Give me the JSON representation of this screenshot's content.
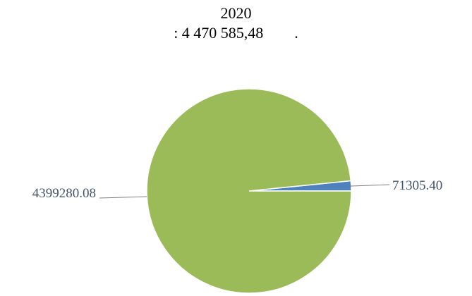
{
  "chart_data": {
    "type": "pie",
    "title_lines": [
      "2020",
      ": 4 470 585,48        ."
    ],
    "series": [
      {
        "values": [
          71305.4,
          4399280.08
        ],
        "data_labels": [
          "71305.40",
          "4399280.08"
        ],
        "colors": [
          "#4f81bd",
          "#9bbb59"
        ]
      }
    ],
    "legend": "none",
    "label_color": "#44546a"
  }
}
